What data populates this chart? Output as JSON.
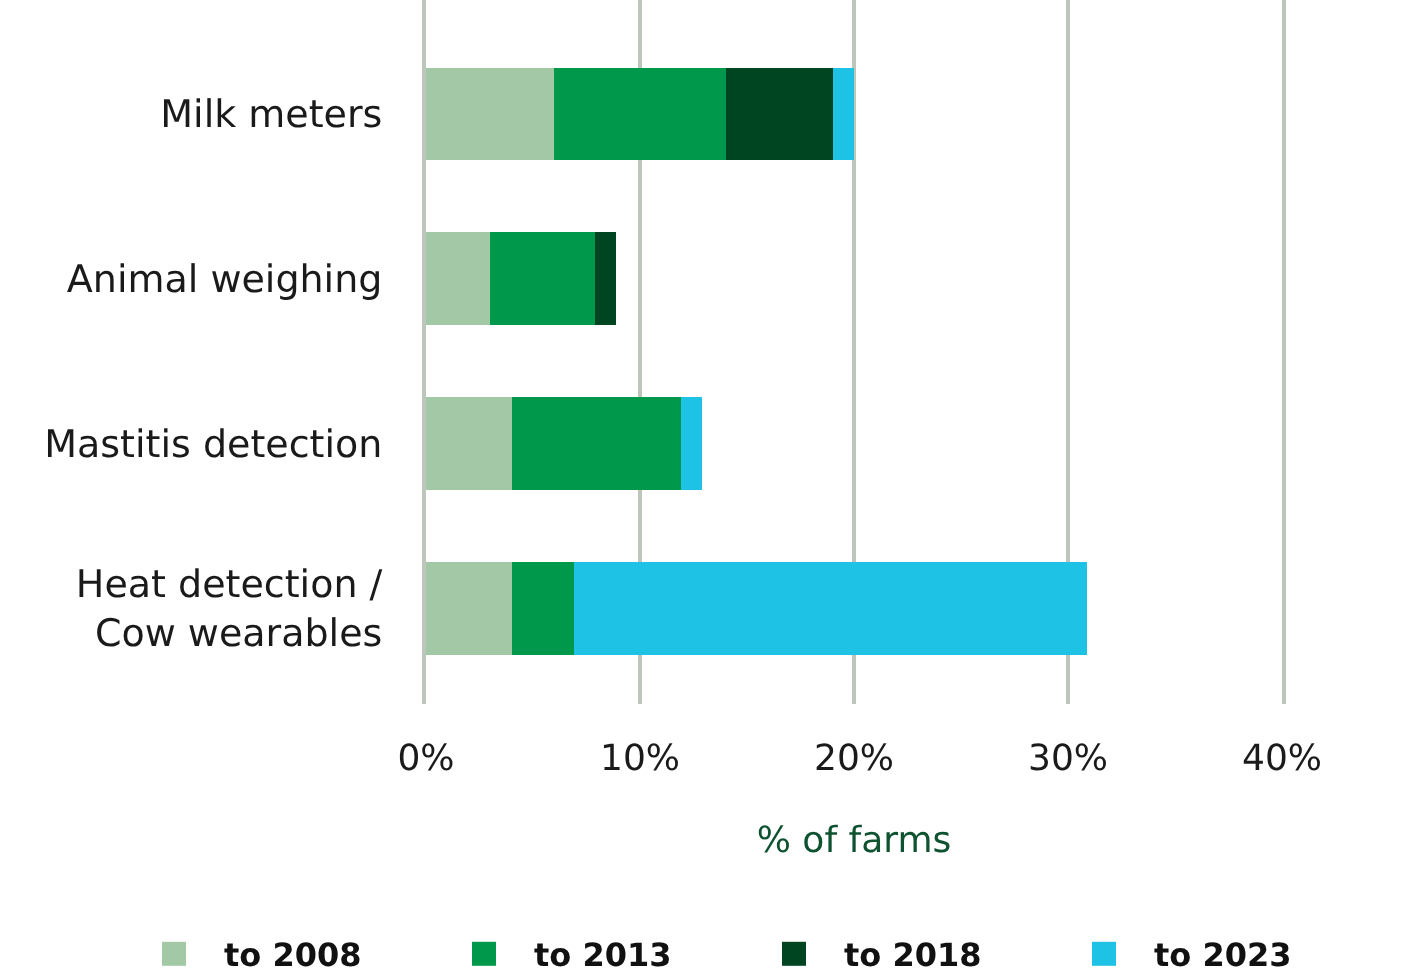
{
  "chart_data": {
    "type": "bar",
    "orientation": "horizontal",
    "stacked": true,
    "categories": [
      "Milk meters",
      "Animal weighing",
      "Mastitis detection",
      "Heat detection /\nCow wearables"
    ],
    "series": [
      {
        "name": "to 2008",
        "color": "#a2c8a6",
        "values": [
          6,
          3,
          4,
          4
        ]
      },
      {
        "name": "to 2013",
        "color": "#00984a",
        "values": [
          8,
          4.9,
          7.9,
          2.9
        ]
      },
      {
        "name": "to 2018",
        "color": "#004521",
        "values": [
          5,
          1,
          null,
          null
        ]
      },
      {
        "name": "to 2023",
        "color": "#1ec2e4",
        "values": [
          1,
          null,
          1,
          24
        ]
      }
    ],
    "xlabel": "% of farms",
    "xlim": [
      0,
      40
    ],
    "xticks": [
      {
        "value": 0,
        "label": "0%"
      },
      {
        "value": 10,
        "label": "10%"
      },
      {
        "value": 20,
        "label": "20%"
      },
      {
        "value": 30,
        "label": "30%"
      },
      {
        "value": 40,
        "label": "40%"
      }
    ],
    "grid": "x",
    "legend": "bottom"
  }
}
